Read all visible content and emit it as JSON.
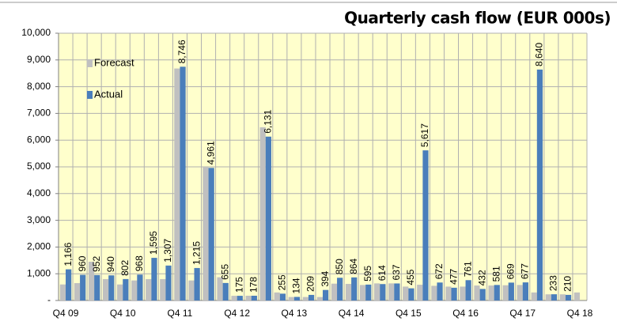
{
  "chart_data": {
    "type": "bar",
    "title": "Quarterly cash flow (EUR 000s)",
    "categories": [
      "Q4 09",
      null,
      null,
      null,
      "Q4 10",
      null,
      null,
      null,
      "Q4 11",
      null,
      null,
      null,
      "Q4 12",
      null,
      null,
      null,
      "Q4 13",
      null,
      null,
      null,
      "Q4 14",
      null,
      null,
      null,
      "Q4 15",
      null,
      null,
      null,
      "Q4 16",
      null,
      null,
      null,
      "Q4 17",
      null,
      null,
      null,
      "Q4 18"
    ],
    "series": [
      {
        "name": "Forecast",
        "color": "#c0c0c0",
        "values": [
          600,
          650,
          1450,
          800,
          600,
          750,
          800,
          800,
          8680,
          750,
          5000,
          870,
          175,
          178,
          6480,
          300,
          130,
          130,
          130,
          630,
          620,
          580,
          640,
          640,
          520,
          590,
          550,
          520,
          520,
          560,
          560,
          570,
          580,
          300,
          230,
          230,
          300
        ]
      },
      {
        "name": "Actual",
        "color": "#4a7ebb",
        "values": [
          1166,
          960,
          952,
          940,
          802,
          968,
          1595,
          1307,
          8746,
          1215,
          4961,
          655,
          175,
          178,
          6131,
          255,
          134,
          209,
          394,
          850,
          864,
          595,
          614,
          637,
          455,
          5617,
          672,
          477,
          761,
          432,
          581,
          669,
          677,
          8640,
          233,
          210,
          null
        ],
        "value_labels": [
          "1,166",
          "960",
          "952",
          "940",
          "802",
          "968",
          "1,595",
          "1,307",
          "8,746",
          "1,215",
          "4,961",
          "655",
          "175",
          "178",
          "6,131",
          "255",
          "134",
          "209",
          "394",
          "850",
          "864",
          "595",
          "614",
          "637",
          "455",
          "5,617",
          "672",
          "477",
          "761",
          "432",
          "581",
          "669",
          "677",
          "8,640",
          "233",
          "210",
          null
        ]
      }
    ],
    "ylim": [
      0,
      10000
    ],
    "yticks": [
      {
        "value": 0,
        "label": "-"
      },
      {
        "value": 1000,
        "label": "1,000"
      },
      {
        "value": 2000,
        "label": "2,000"
      },
      {
        "value": 3000,
        "label": "3,000"
      },
      {
        "value": 4000,
        "label": "4,000"
      },
      {
        "value": 5000,
        "label": "5,000"
      },
      {
        "value": 6000,
        "label": "6,000"
      },
      {
        "value": 7000,
        "label": "7,000"
      },
      {
        "value": 8000,
        "label": "8,000"
      },
      {
        "value": 9000,
        "label": "9,000"
      },
      {
        "value": 10000,
        "label": "10,000"
      }
    ],
    "grid": true,
    "legend": "upper left",
    "background": "#ffffcc"
  }
}
